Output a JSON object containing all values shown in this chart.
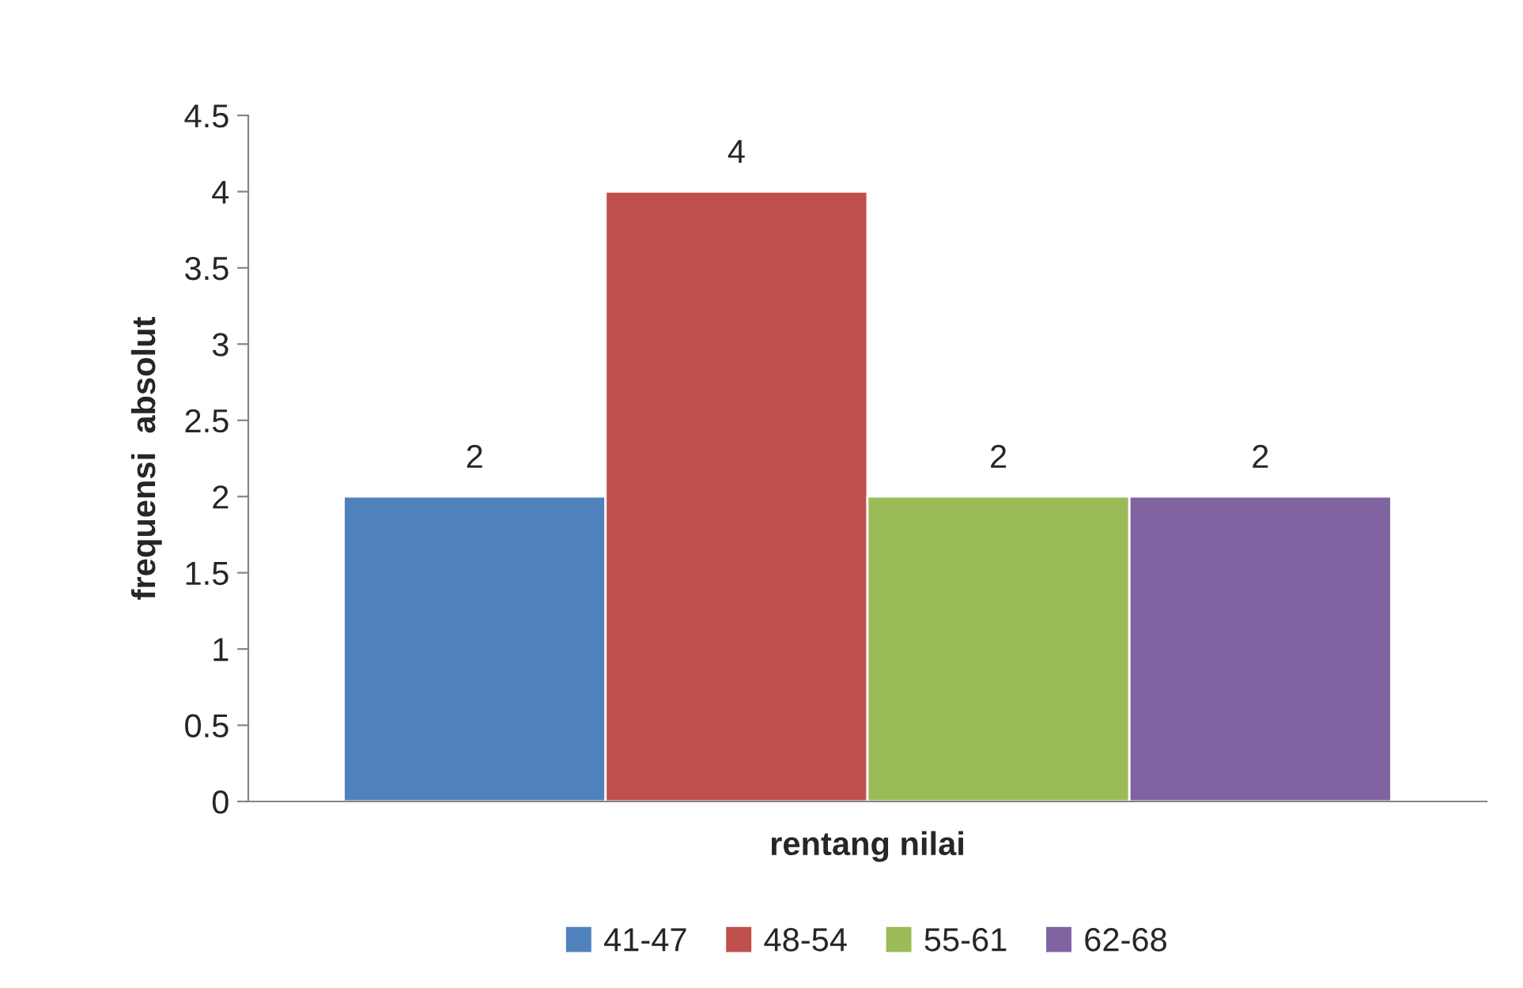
{
  "chart_data": {
    "type": "bar",
    "xlabel": "rentang nilai",
    "ylabel": "frequensi  absolut",
    "categories": [
      null
    ],
    "series": [
      {
        "name": "41-47",
        "color": "#4f81bd",
        "values": [
          2
        ]
      },
      {
        "name": "48-54",
        "color": "#c0504d",
        "values": [
          4
        ]
      },
      {
        "name": "55-61",
        "color": "#9bbb59",
        "values": [
          2
        ]
      },
      {
        "name": "62-68",
        "color": "#8064a2",
        "values": [
          2
        ]
      }
    ],
    "ylim": [
      0,
      4.5
    ],
    "yticks": [
      0,
      0.5,
      1,
      1.5,
      2,
      2.5,
      3,
      3.5,
      4,
      4.5
    ],
    "data_labels": true,
    "legend": "bottom",
    "grid": false
  }
}
